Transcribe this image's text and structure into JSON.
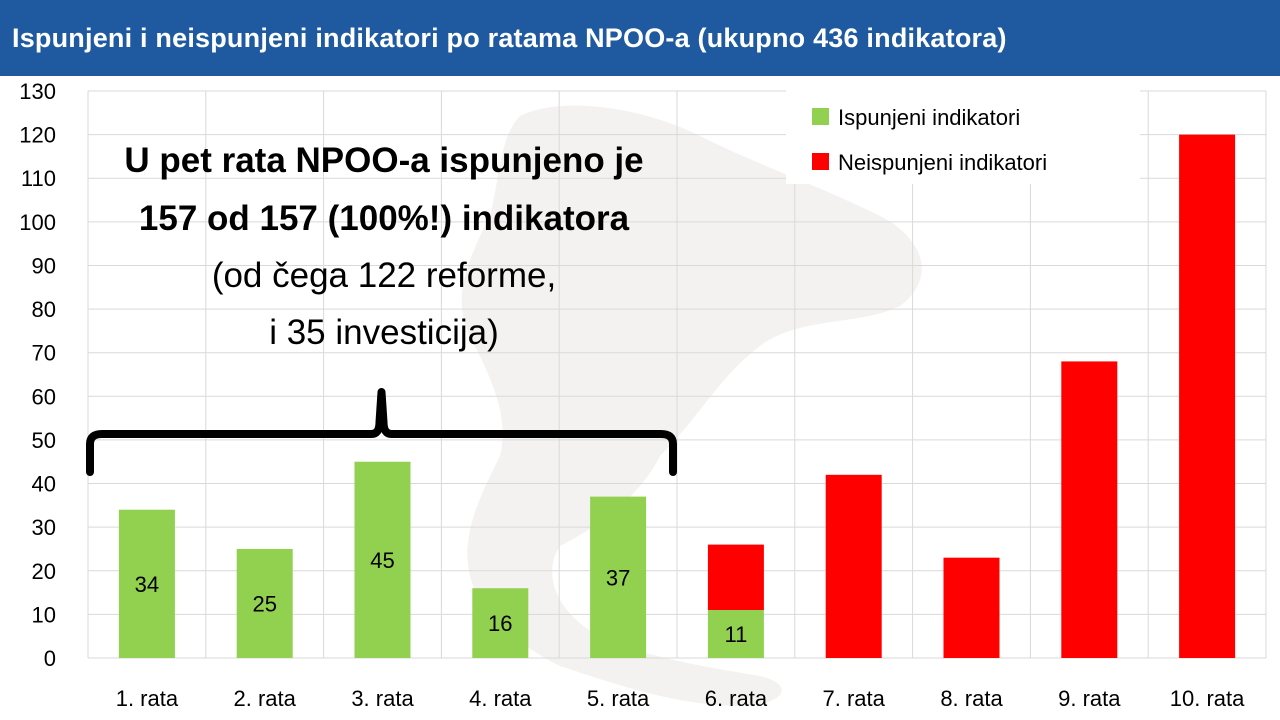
{
  "header": {
    "title": "Ispunjeni i neispunjeni indikatori po ratama NPOO-a (ukupno 436 indikatora)"
  },
  "chart_data": {
    "type": "bar",
    "stacked": true,
    "categories": [
      "1. rata",
      "2. rata",
      "3. rata",
      "4. rata",
      "5. rata",
      "6. rata",
      "7. rata",
      "8. rata",
      "9. rata",
      "10. rata"
    ],
    "series": [
      {
        "name": "Ispunjeni indikatori",
        "color": "#92d050",
        "values": [
          34,
          25,
          45,
          16,
          37,
          11,
          0,
          0,
          0,
          0
        ],
        "labels": [
          "34",
          "25",
          "45",
          "16",
          "37",
          "11",
          "",
          "",
          "",
          ""
        ]
      },
      {
        "name": "Neispunjeni indikatori",
        "color": "#ff0000",
        "values": [
          0,
          0,
          0,
          0,
          0,
          15,
          42,
          23,
          68,
          120
        ],
        "labels": [
          "",
          "",
          "",
          "",
          "",
          "",
          "",
          "",
          "",
          ""
        ]
      }
    ],
    "ylim": [
      0,
      130
    ],
    "yticks": [
      "0",
      "10",
      "20",
      "30",
      "40",
      "50",
      "60",
      "70",
      "80",
      "90",
      "100",
      "110",
      "120",
      "130"
    ],
    "grid": true,
    "legend_position": "top-right",
    "annotation": {
      "line1": "U pet rata NPOO-a ispunjeno je",
      "line2": "157 od 157 (100%!) indikatora",
      "line3": "(od čega 122 reforme,",
      "line4": "i 35 investicija)",
      "brace_from_category": 0,
      "brace_to_category": 4
    }
  }
}
